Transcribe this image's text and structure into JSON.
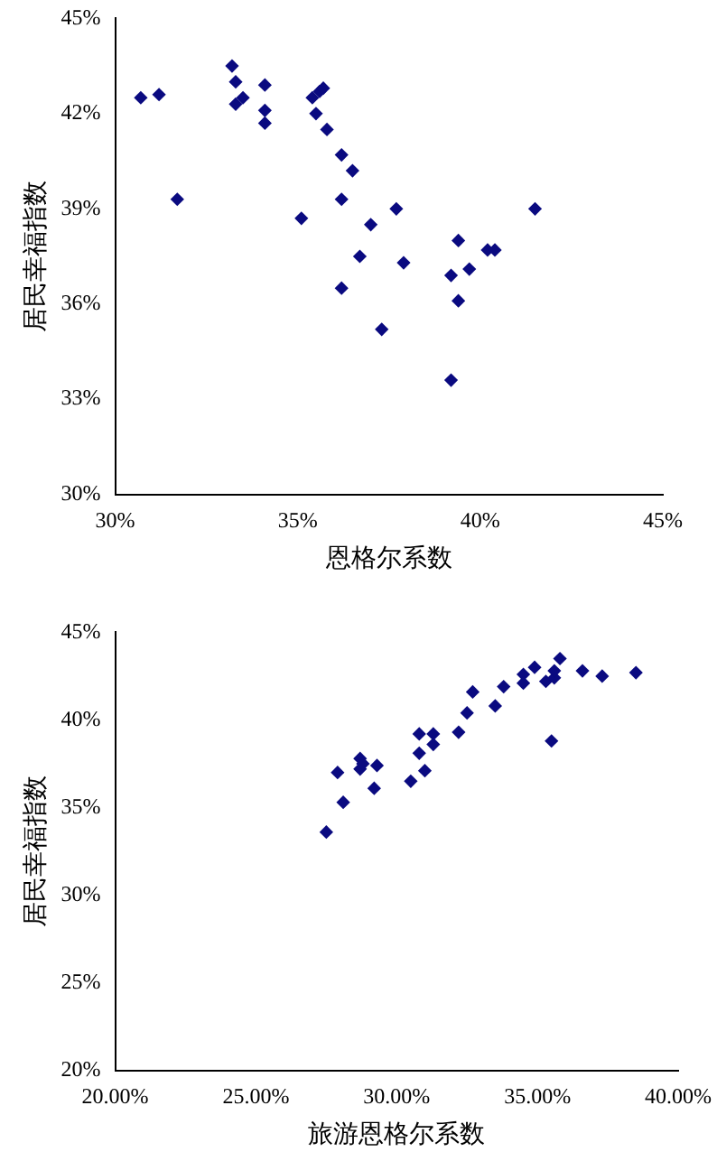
{
  "chart_data": [
    {
      "type": "scatter",
      "xlabel": "恩格尔系数",
      "ylabel": "居民幸福指数",
      "marker": "diamond",
      "grid": false,
      "legend": false,
      "xlim": [
        30,
        45
      ],
      "xticks": [
        {
          "value": 30,
          "label": "30%"
        },
        {
          "value": 35,
          "label": "35%"
        },
        {
          "value": 40,
          "label": "40%"
        },
        {
          "value": 45,
          "label": "45%"
        }
      ],
      "ylim": [
        30,
        45
      ],
      "yticks": [
        {
          "value": 30,
          "label": "30%"
        },
        {
          "value": 33,
          "label": "33%"
        },
        {
          "value": 36,
          "label": "36%"
        },
        {
          "value": 39,
          "label": "39%"
        },
        {
          "value": 42,
          "label": "42%"
        },
        {
          "value": 45,
          "label": "45%"
        }
      ],
      "series": [
        {
          "color": "#0a0a80",
          "x": [
            30.7,
            31.2,
            31.7,
            33.2,
            33.3,
            33.3,
            33.5,
            34.1,
            34.1,
            34.1,
            35.1,
            35.4,
            35.6,
            35.7,
            35.5,
            35.8,
            36.2,
            36.5,
            36.2,
            37.7,
            37.0,
            41.5,
            39.4,
            36.7,
            37.9,
            40.2,
            40.4,
            39.7,
            39.2,
            36.2,
            39.4,
            37.3,
            39.2
          ],
          "values": [
            42.5,
            42.6,
            39.3,
            43.5,
            43.0,
            42.3,
            42.5,
            42.9,
            42.1,
            41.7,
            38.7,
            42.5,
            42.7,
            42.8,
            42.0,
            41.5,
            40.7,
            40.2,
            39.3,
            39.0,
            38.5,
            39.0,
            38.0,
            37.5,
            37.3,
            37.7,
            37.7,
            37.1,
            36.9,
            36.5,
            36.1,
            35.2,
            33.6
          ]
        }
      ]
    },
    {
      "type": "scatter",
      "xlabel": "旅游恩格尔系数",
      "ylabel": "居民幸福指数",
      "marker": "diamond",
      "grid": false,
      "legend": false,
      "xlim": [
        20,
        40
      ],
      "xticks": [
        {
          "value": 20,
          "label": "20.00%"
        },
        {
          "value": 25,
          "label": "25.00%"
        },
        {
          "value": 30,
          "label": "30.00%"
        },
        {
          "value": 35,
          "label": "35.00%"
        },
        {
          "value": 40,
          "label": "40.00%"
        }
      ],
      "ylim": [
        20,
        45
      ],
      "yticks": [
        {
          "value": 20,
          "label": "20%"
        },
        {
          "value": 25,
          "label": "25%"
        },
        {
          "value": 30,
          "label": "30%"
        },
        {
          "value": 35,
          "label": "35%"
        },
        {
          "value": 40,
          "label": "40%"
        },
        {
          "value": 45,
          "label": "45%"
        }
      ],
      "series": [
        {
          "color": "#0a0a80",
          "x": [
            27.5,
            27.9,
            28.1,
            28.7,
            28.7,
            28.8,
            29.3,
            29.2,
            30.5,
            30.8,
            31.0,
            30.8,
            31.3,
            31.3,
            32.2,
            32.5,
            32.7,
            33.5,
            33.8,
            34.5,
            34.5,
            34.9,
            35.3,
            35.6,
            35.6,
            35.8,
            35.5,
            36.6,
            37.3,
            38.5
          ],
          "values": [
            33.6,
            37.0,
            35.3,
            37.8,
            37.2,
            37.5,
            37.4,
            36.1,
            36.5,
            38.1,
            37.1,
            39.2,
            39.2,
            38.6,
            39.3,
            40.4,
            41.6,
            40.8,
            41.9,
            42.6,
            42.1,
            43.0,
            42.2,
            42.4,
            42.8,
            43.5,
            38.8,
            42.8,
            42.5,
            42.7
          ]
        }
      ]
    }
  ]
}
